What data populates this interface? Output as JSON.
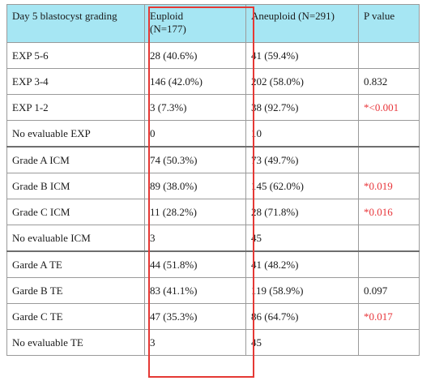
{
  "header": {
    "col1": "Day 5 blastocyst grading",
    "col2_line1": "Euploid",
    "col2_line2": "(N=177)",
    "col3": "Aneuploid (N=291)",
    "col4": "P value"
  },
  "rows": [
    {
      "label": "EXP 5-6",
      "euploid": "28 (40.6%)",
      "aneuploid": "41 (59.4%)",
      "p": "",
      "sig": false
    },
    {
      "label": "EXP 3-4",
      "euploid": "146 (42.0%)",
      "aneuploid": "202 (58.0%)",
      "p": "0.832",
      "sig": false
    },
    {
      "label": "EXP 1-2",
      "euploid": "3 (7.3%)",
      "aneuploid": "38 (92.7%)",
      "p": "*<0.001",
      "sig": true
    },
    {
      "label": "No evaluable EXP",
      "euploid": "0",
      "aneuploid": "10",
      "p": "",
      "sig": false
    },
    {
      "label": "Grade A ICM",
      "euploid": "74 (50.3%)",
      "aneuploid": "73 (49.7%)",
      "p": "",
      "sig": false
    },
    {
      "label": "Grade B ICM",
      "euploid": "89 (38.0%)",
      "aneuploid": "145 (62.0%)",
      "p": "*0.019",
      "sig": true
    },
    {
      "label": "Grade C ICM",
      "euploid": "11 (28.2%)",
      "aneuploid": "28 (71.8%)",
      "p": "*0.016",
      "sig": true
    },
    {
      "label": "No evaluable ICM",
      "euploid": "3",
      "aneuploid": "45",
      "p": "",
      "sig": false
    },
    {
      "label": "Garde A TE",
      "euploid": "44 (51.8%)",
      "aneuploid": "41 (48.2%)",
      "p": "",
      "sig": false
    },
    {
      "label": "Garde B TE",
      "euploid": "83 (41.1%)",
      "aneuploid": "119 (58.9%)",
      "p": "0.097",
      "sig": false
    },
    {
      "label": "Garde C TE",
      "euploid": "47 (35.3%)",
      "aneuploid": "86 (64.7%)",
      "p": "*0.017",
      "sig": true
    },
    {
      "label": "No evaluable TE",
      "euploid": "3",
      "aneuploid": "45",
      "p": "",
      "sig": false
    }
  ],
  "colors": {
    "header_bg": "#a6e6f3",
    "highlight_border": "#e53935",
    "significant_text": "#e8353a"
  }
}
